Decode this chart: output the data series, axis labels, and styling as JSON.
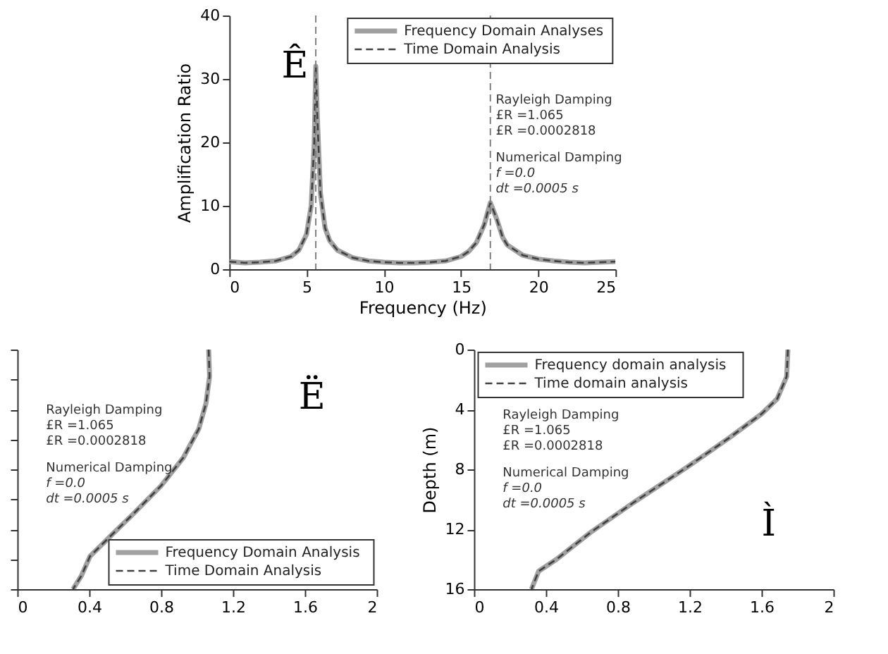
{
  "chart_data": [
    {
      "type": "line",
      "xlabel": "Frequency (Hz)",
      "ylabel": "Amplification Ratio",
      "xlim": [
        0,
        25
      ],
      "ylim": [
        0,
        40
      ],
      "xticks": [
        0,
        5,
        10,
        15,
        20,
        25
      ],
      "yticks": [
        0,
        10,
        20,
        30,
        40
      ],
      "legend": "top right",
      "grid": false,
      "x": [
        0,
        1,
        2,
        3,
        4,
        4.5,
        5,
        5.3,
        5.5,
        5.6,
        5.7,
        5.9,
        6.2,
        6.5,
        7,
        8,
        9,
        10,
        11,
        12,
        13,
        14,
        15,
        15.5,
        16,
        16.5,
        16.9,
        17.3,
        17.7,
        18,
        19,
        20,
        21,
        22,
        23,
        24,
        25
      ],
      "series": [
        {
          "name": "Frequency Domain Analyses",
          "color": "#a0a0a0",
          "line_style": "solid",
          "values": [
            1.2,
            1.0,
            1.1,
            1.3,
            2.0,
            3.0,
            5.5,
            10,
            20,
            32,
            24,
            12,
            6.5,
            4.5,
            3.0,
            1.8,
            1.3,
            1.1,
            1.0,
            1.0,
            1.1,
            1.3,
            2.0,
            2.8,
            4.2,
            7,
            10.5,
            8,
            5,
            3.8,
            2.2,
            1.6,
            1.3,
            1.1,
            1.0,
            1.1,
            1.2
          ]
        },
        {
          "name": "Time Domain Analysis",
          "color": "#404040",
          "line_style": "dashed",
          "values": [
            1.2,
            1.0,
            1.1,
            1.3,
            2.0,
            3.0,
            5.5,
            10,
            20,
            32,
            24,
            12,
            6.5,
            4.5,
            3.0,
            1.8,
            1.3,
            1.1,
            1.0,
            1.0,
            1.1,
            1.3,
            2.0,
            2.8,
            4.2,
            7,
            10.5,
            8,
            5,
            3.8,
            2.2,
            1.6,
            1.3,
            1.1,
            1.0,
            1.1,
            1.2
          ]
        }
      ],
      "ref_lines": [
        {
          "axis": "x",
          "value": 5.6,
          "line_style": "dashed",
          "color": "#808080"
        },
        {
          "axis": "x",
          "value": 16.9,
          "line_style": "dashed",
          "color": "#808080"
        }
      ],
      "annotations": [
        "Rayleigh Damping",
        "£R =1.065",
        "£R =0.0002818",
        "Numerical Damping",
        "f =0.0",
        "dt =0.0005 s",
        "Ê"
      ]
    },
    {
      "type": "line",
      "xlim": [
        0,
        2
      ],
      "ylim": [
        16,
        0
      ],
      "xticks": [
        0,
        0.4,
        0.8,
        1.2,
        1.6,
        2
      ],
      "yticks": [
        0,
        2,
        4,
        6,
        8,
        10,
        12,
        14,
        16
      ],
      "tick_labels": "x",
      "legend": "bottom right",
      "grid": false,
      "series": [
        {
          "name": "Frequency Domain Analysis",
          "color": "#a0a0a0",
          "line_style": "solid",
          "x": [
            1.065,
            1.07,
            1.05,
            1.01,
            0.925,
            0.8,
            0.635,
            0.515,
            0.405,
            0.357,
            0.31
          ],
          "values": [
            0,
            1.8,
            3.6,
            5.3,
            7.2,
            9.1,
            11.1,
            12.5,
            13.8,
            15.1,
            16
          ]
        },
        {
          "name": "Time Domain Analysis",
          "color": "#404040",
          "line_style": "dashed",
          "x": [
            1.065,
            1.07,
            1.05,
            1.01,
            0.925,
            0.8,
            0.635,
            0.515,
            0.405,
            0.357,
            0.31
          ],
          "values": [
            0,
            1.8,
            3.6,
            5.3,
            7.2,
            9.1,
            11.1,
            12.5,
            13.8,
            15.1,
            16
          ]
        }
      ],
      "annotations": [
        "Rayleigh Damping",
        "£R =1.065",
        "£R =0.0002818",
        "Numerical Damping",
        "f =0.0",
        "dt =0.0005 s",
        "Ë"
      ]
    },
    {
      "type": "line",
      "ylabel": "Depth (m)",
      "xlim": [
        0,
        2
      ],
      "ylim": [
        16,
        0
      ],
      "xticks": [
        0,
        0.4,
        0.8,
        1.2,
        1.6,
        2
      ],
      "yticks": [
        0,
        4,
        8,
        12,
        16
      ],
      "legend": "top left",
      "grid": false,
      "series": [
        {
          "name": "Frequency domain analysis",
          "color": "#a0a0a0",
          "line_style": "solid",
          "x": [
            1.747,
            1.74,
            1.687,
            1.6,
            1.42,
            1.18,
            0.89,
            0.65,
            0.46,
            0.36,
            0.32
          ],
          "values": [
            0,
            1.8,
            3.3,
            4.3,
            5.9,
            7.9,
            10.2,
            12.2,
            14.0,
            14.8,
            16
          ]
        },
        {
          "name": "Time domain analysis",
          "color": "#404040",
          "line_style": "dashed",
          "x": [
            1.747,
            1.74,
            1.687,
            1.6,
            1.42,
            1.18,
            0.89,
            0.65,
            0.46,
            0.36,
            0.32
          ],
          "values": [
            0,
            1.8,
            3.3,
            4.3,
            5.9,
            7.9,
            10.2,
            12.2,
            14.0,
            14.8,
            16
          ]
        }
      ],
      "annotations": [
        "Rayleigh Damping",
        "£R =1.065",
        "£R =0.0002818",
        "Numerical Damping",
        "f =0.0",
        "dt =0.0005 s",
        "Ì"
      ]
    }
  ]
}
